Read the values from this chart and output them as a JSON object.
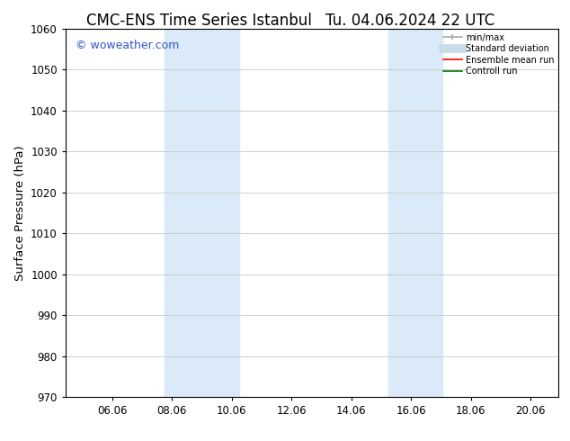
{
  "title_left": "CMC-ENS Time Series Istanbul",
  "title_right": "Tu. 04.06.2024 22 UTC",
  "ylabel": "Surface Pressure (hPa)",
  "xlim": [
    4.5,
    21.0
  ],
  "ylim": [
    970,
    1060
  ],
  "yticks": [
    970,
    980,
    990,
    1000,
    1010,
    1020,
    1030,
    1040,
    1050,
    1060
  ],
  "xticks": [
    6.06,
    8.06,
    10.06,
    12.06,
    14.06,
    16.06,
    18.06,
    20.06
  ],
  "xticklabels": [
    "06.06",
    "08.06",
    "10.06",
    "12.06",
    "14.06",
    "16.06",
    "18.06",
    "20.06"
  ],
  "shade_bands": [
    {
      "xmin": 7.8,
      "xmax": 10.3,
      "color": "#daeaf8"
    },
    {
      "xmin": 15.3,
      "xmax": 17.1,
      "color": "#daeaf8"
    }
  ],
  "watermark": "© woweather.com",
  "watermark_color": "#3355cc",
  "background_color": "#ffffff",
  "plot_bg_color": "#ffffff",
  "grid_color": "#c8c8c8",
  "legend_items": [
    {
      "label": "min/max",
      "color": "#aaaaaa",
      "lw": 1.2
    },
    {
      "label": "Standard deviation",
      "color": "#c8dcea",
      "lw": 7
    },
    {
      "label": "Ensemble mean run",
      "color": "#ff0000",
      "lw": 1.2
    },
    {
      "label": "Controll run",
      "color": "#007700",
      "lw": 1.2
    }
  ],
  "title_fontsize": 12,
  "tick_fontsize": 8.5,
  "label_fontsize": 9.5,
  "watermark_fontsize": 9
}
